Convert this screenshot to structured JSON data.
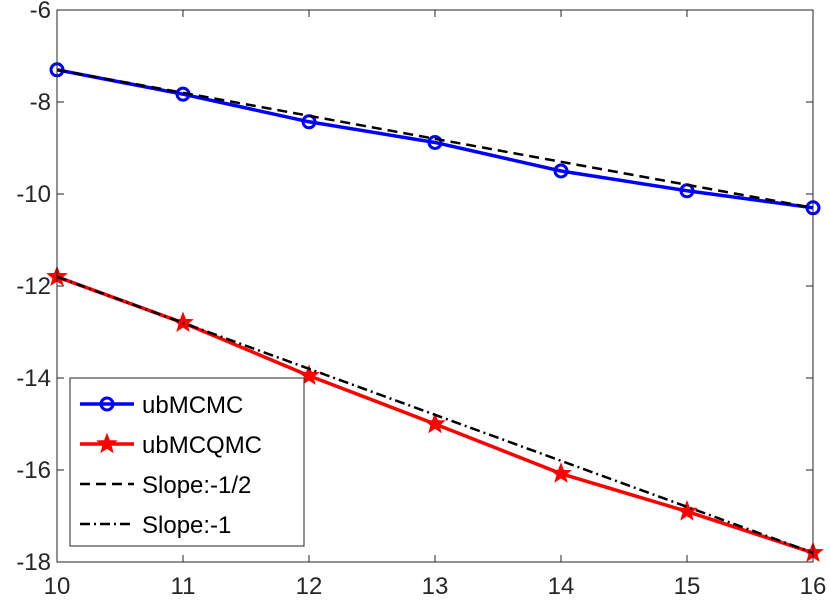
{
  "chart_data": {
    "type": "line",
    "title": "",
    "xlabel": "",
    "ylabel": "",
    "xlim": [
      10,
      16
    ],
    "ylim": [
      -18,
      -6
    ],
    "xticks": [
      10,
      11,
      12,
      13,
      14,
      15,
      16
    ],
    "yticks": [
      -18,
      -16,
      -14,
      -12,
      -10,
      -8,
      -6
    ],
    "grid": false,
    "legend_position": "bottom-left",
    "series": [
      {
        "name": "ubMCMC",
        "color": "#0000ff",
        "marker": "circle",
        "line": "solid",
        "x": [
          10,
          11,
          12,
          13,
          14,
          15,
          16
        ],
        "y": [
          -7.3,
          -7.83,
          -8.43,
          -8.88,
          -9.5,
          -9.93,
          -10.3
        ]
      },
      {
        "name": "ubMCQMC",
        "color": "#ff0000",
        "marker": "star",
        "line": "solid",
        "x": [
          10,
          11,
          12,
          13,
          14,
          15,
          16
        ],
        "y": [
          -11.8,
          -12.8,
          -13.95,
          -15.0,
          -16.08,
          -16.9,
          -17.8
        ]
      },
      {
        "name": "Slope:-1/2",
        "color": "#000000",
        "marker": "none",
        "line": "dashed",
        "x": [
          10,
          16
        ],
        "y": [
          -7.3,
          -10.3
        ]
      },
      {
        "name": "Slope:-1",
        "color": "#000000",
        "marker": "none",
        "line": "dashdot",
        "x": [
          10,
          16
        ],
        "y": [
          -11.8,
          -17.8
        ]
      }
    ]
  }
}
